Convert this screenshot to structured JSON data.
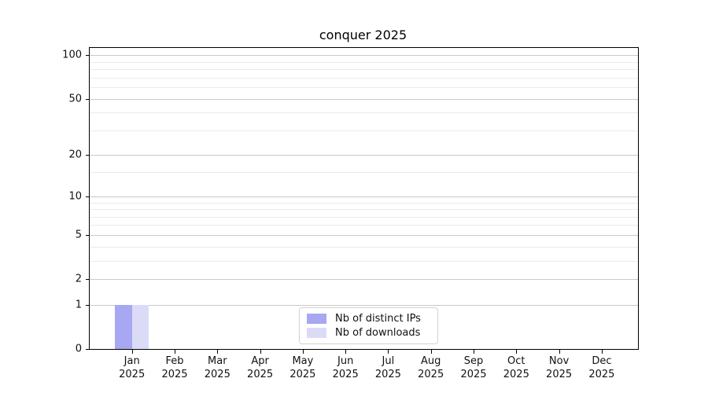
{
  "chart_data": {
    "type": "bar",
    "title": "conquer 2025",
    "categories": [
      {
        "month": "Jan",
        "year": "2025"
      },
      {
        "month": "Feb",
        "year": "2025"
      },
      {
        "month": "Mar",
        "year": "2025"
      },
      {
        "month": "Apr",
        "year": "2025"
      },
      {
        "month": "May",
        "year": "2025"
      },
      {
        "month": "Jun",
        "year": "2025"
      },
      {
        "month": "Jul",
        "year": "2025"
      },
      {
        "month": "Aug",
        "year": "2025"
      },
      {
        "month": "Sep",
        "year": "2025"
      },
      {
        "month": "Oct",
        "year": "2025"
      },
      {
        "month": "Nov",
        "year": "2025"
      },
      {
        "month": "Dec",
        "year": "2025"
      }
    ],
    "series": [
      {
        "name": "Nb of distinct IPs",
        "color": "#a7a7f2",
        "values": [
          1,
          0,
          0,
          0,
          0,
          0,
          0,
          0,
          0,
          0,
          0,
          0
        ]
      },
      {
        "name": "Nb of downloads",
        "color": "#dbdbf8",
        "values": [
          1,
          0,
          0,
          0,
          0,
          0,
          0,
          0,
          0,
          0,
          0,
          0
        ]
      }
    ],
    "xlabel": "",
    "ylabel": "",
    "yscale": "log1p",
    "ylim": [
      0,
      112
    ],
    "y_major_ticks": [
      0,
      1,
      2,
      5,
      10,
      20,
      50,
      100
    ],
    "y_minor_ticks": [
      3,
      4,
      6,
      7,
      8,
      9,
      15,
      30,
      40,
      60,
      70,
      80,
      90
    ],
    "grid": "horizontal, major and minor",
    "legend_position": "inside lower center",
    "colors": {
      "bar_distinct_ips": "#a7a7f2",
      "bar_downloads": "#dbdbf8",
      "major_grid": "#c9c9c9",
      "minor_grid": "#ebebeb",
      "spine": "#000000",
      "text": "#111111",
      "legend_border": "#d2d2d2"
    }
  }
}
